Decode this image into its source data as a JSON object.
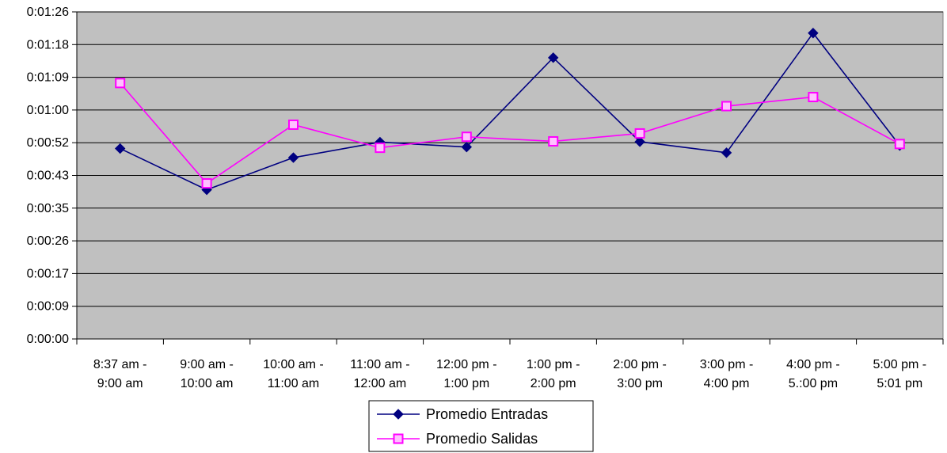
{
  "chart_data": {
    "type": "line",
    "title": "",
    "xlabel": "",
    "ylabel": "",
    "categories": [
      [
        "8:37 am -",
        "9:00 am"
      ],
      [
        "9:00 am -",
        "10:00 am"
      ],
      [
        "10:00 am -",
        "11:00 am"
      ],
      [
        "11:00 am -",
        "12:00 am"
      ],
      [
        "12:00 pm -",
        "1:00 pm"
      ],
      [
        "1:00 pm -",
        "2:00 pm"
      ],
      [
        "2:00 pm -",
        "3:00 pm"
      ],
      [
        "3:00 pm -",
        "4:00 pm"
      ],
      [
        "4:00 pm -",
        "5.:00 pm"
      ],
      [
        "5:00 pm -",
        "5:01 pm"
      ]
    ],
    "y_unit": "seconds",
    "ylim": [
      0,
      86.4
    ],
    "y_ticks": [
      0,
      8.64,
      17.28,
      25.92,
      34.56,
      43.2,
      51.84,
      60.48,
      69.12,
      77.76,
      86.4
    ],
    "y_tick_labels": [
      "0:00:00",
      "0:00:09",
      "0:00:17",
      "0:00:26",
      "0:00:35",
      "0:00:43",
      "0:00:52",
      "0:01:00",
      "0:01:09",
      "0:01:18",
      "0:01:26"
    ],
    "grid": true,
    "legend_position": "bottom",
    "series": [
      {
        "name": "Promedio Entradas",
        "color": "#000080",
        "marker": "diamond",
        "values": [
          50.3,
          39.4,
          47.9,
          52.0,
          50.7,
          74.3,
          52.1,
          49.2,
          80.8,
          51.1
        ]
      },
      {
        "name": "Promedio Salidas",
        "color": "#FF00FF",
        "marker": "square",
        "values": [
          67.6,
          41.1,
          56.6,
          50.5,
          53.4,
          52.2,
          54.3,
          61.5,
          63.9,
          51.5
        ]
      }
    ]
  }
}
